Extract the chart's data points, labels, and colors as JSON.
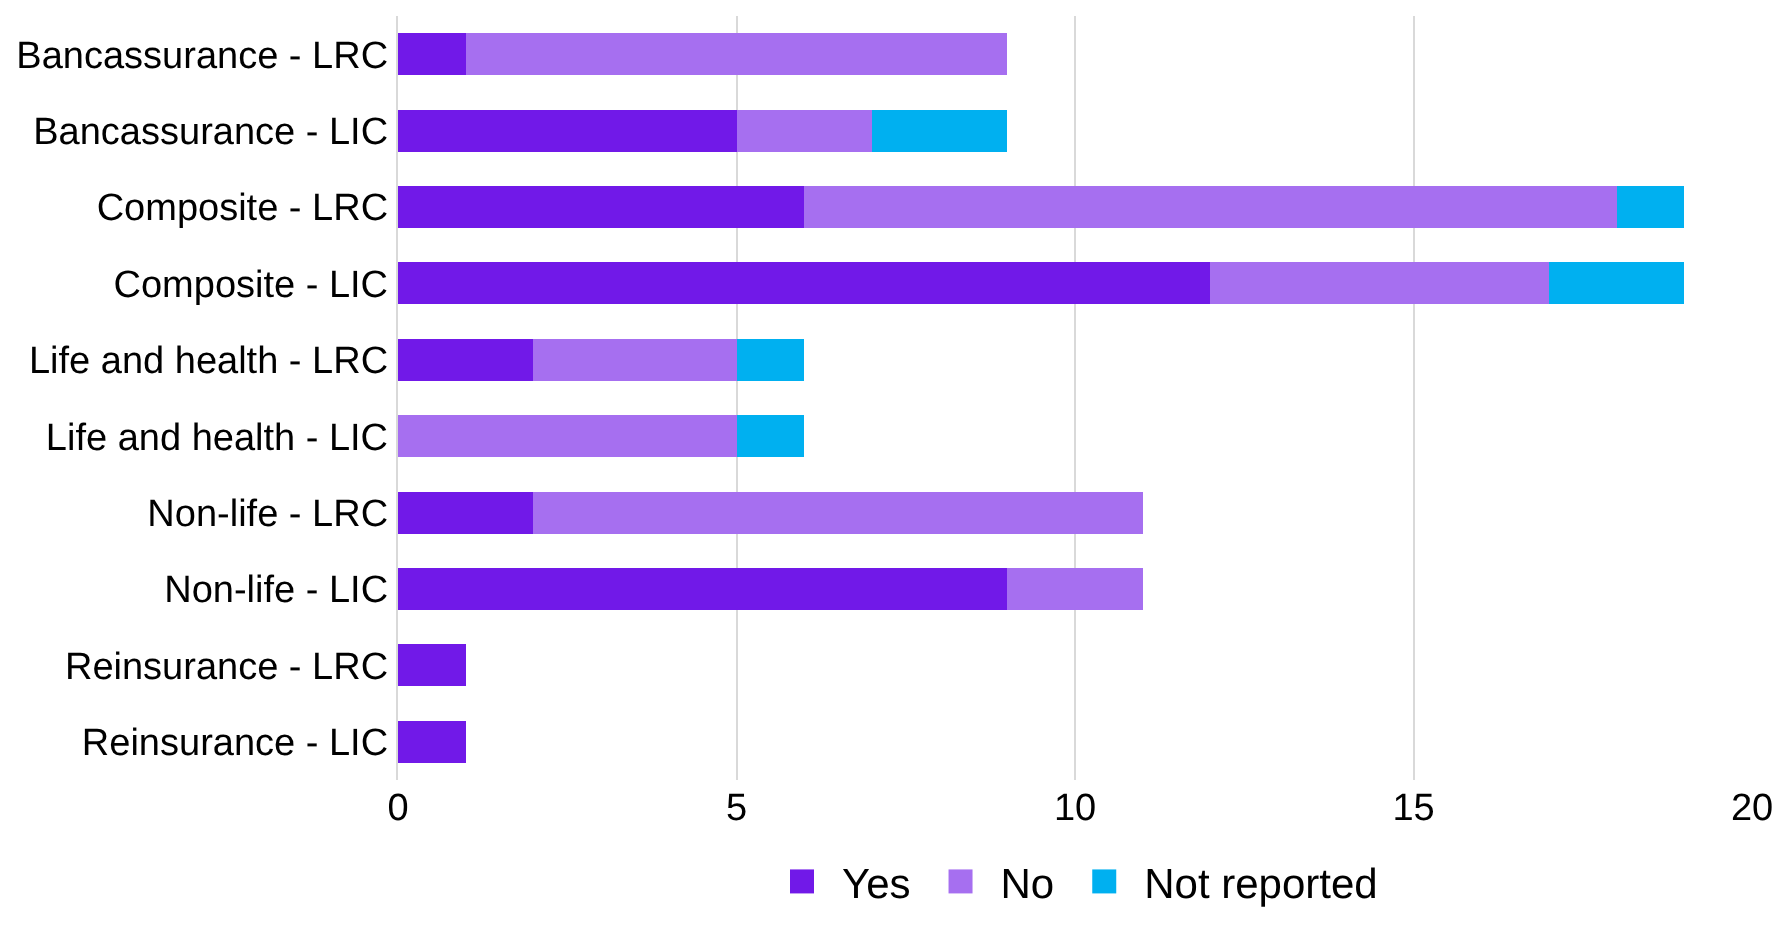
{
  "chart_data": {
    "type": "bar",
    "orientation": "horizontal",
    "stacked": true,
    "categories": [
      "Bancassurance - LRC",
      "Bancassurance - LIC",
      "Composite - LRC",
      "Composite - LIC",
      "Life and health - LRC",
      "Life and health - LIC",
      "Non-life - LRC",
      "Non-life - LIC",
      "Reinsurance - LRC",
      "Reinsurance - LIC"
    ],
    "series": [
      {
        "name": "Yes",
        "color": "#7119e8",
        "values": [
          1,
          5,
          6,
          12,
          2,
          0,
          2,
          9,
          1,
          1
        ]
      },
      {
        "name": "No",
        "color": "#a66ff0",
        "values": [
          8,
          2,
          12,
          5,
          3,
          5,
          9,
          2,
          0,
          0
        ]
      },
      {
        "name": "Not reported",
        "color": "#00b0f0",
        "values": [
          0,
          2,
          1,
          2,
          1,
          1,
          0,
          0,
          0,
          0
        ]
      }
    ],
    "xlim": [
      0,
      20
    ],
    "xticks": [
      0,
      5,
      10,
      15,
      20
    ],
    "grid": "x",
    "legend": "bottom"
  }
}
